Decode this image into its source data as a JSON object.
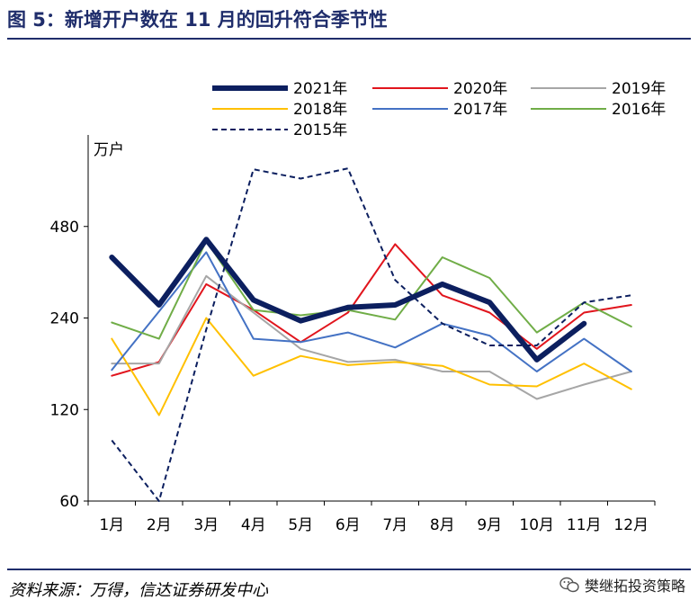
{
  "figure": {
    "title": "图 5：新增开户数在 11 月的回升符合季节性",
    "source": "资料来源：万得，信达证券研发中心",
    "watermark": "樊继拓投资策略"
  },
  "chart_data": {
    "type": "line",
    "title": "",
    "ylabel": "万户",
    "xlabel": "",
    "y_scale": "log",
    "ylim": [
      60,
      960
    ],
    "yticks": [
      60,
      120,
      240,
      480
    ],
    "grid": false,
    "legend_position": "top",
    "categories": [
      "1月",
      "2月",
      "3月",
      "4月",
      "5月",
      "6月",
      "7月",
      "8月",
      "9月",
      "10月",
      "11月",
      "12月"
    ],
    "series": [
      {
        "name": "2021年",
        "color": "#0c1f5f",
        "width": 6,
        "dash": "",
        "values": [
          380,
          265,
          435,
          275,
          235,
          260,
          265,
          310,
          270,
          175,
          230,
          null
        ]
      },
      {
        "name": "2020年",
        "color": "#e1151d",
        "width": 2,
        "dash": "",
        "values": [
          155,
          172,
          310,
          255,
          200,
          250,
          420,
          285,
          250,
          190,
          250,
          265
        ]
      },
      {
        "name": "2019年",
        "color": "#a6a6a6",
        "width": 2,
        "dash": "",
        "values": [
          170,
          170,
          330,
          250,
          190,
          172,
          175,
          160,
          160,
          130,
          145,
          160
        ]
      },
      {
        "name": "2018年",
        "color": "#ffc000",
        "width": 2,
        "dash": "",
        "values": [
          205,
          115,
          240,
          155,
          180,
          168,
          172,
          167,
          145,
          143,
          170,
          140
        ]
      },
      {
        "name": "2017年",
        "color": "#4472c4",
        "width": 2,
        "dash": "",
        "values": [
          162,
          252,
          395,
          205,
          200,
          215,
          192,
          230,
          210,
          160,
          205,
          160
        ]
      },
      {
        "name": "2016年",
        "color": "#70ad47",
        "width": 2,
        "dash": "",
        "values": [
          232,
          205,
          430,
          255,
          245,
          255,
          237,
          380,
          325,
          215,
          270,
          225
        ]
      },
      {
        "name": "2015年",
        "color": "#0c1f5f",
        "width": 2,
        "dash": "6,4",
        "values": [
          95,
          60,
          220,
          740,
          690,
          745,
          320,
          230,
          195,
          195,
          270,
          285
        ]
      }
    ]
  }
}
